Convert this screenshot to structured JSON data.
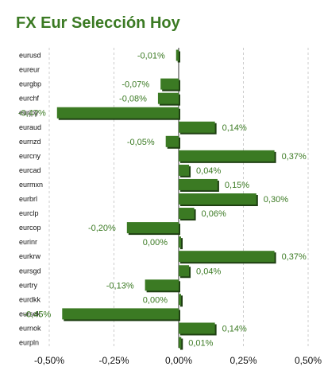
{
  "title": "FX Eur Selección Hoy",
  "colors": {
    "bar": "#3b7a23",
    "bar_shadow": "#1e3f12",
    "label": "#3b7a23",
    "grid": "#cccccc"
  },
  "chart_data": {
    "type": "bar",
    "orientation": "horizontal",
    "title": "FX Eur Selección Hoy",
    "xlabel": "",
    "ylabel": "",
    "xlim": [
      -0.5,
      0.5
    ],
    "xticks": [
      "-0,50%",
      "-0,25%",
      "0,00%",
      "0,25%",
      "0,50%"
    ],
    "grid": "vertical-dashed",
    "categories": [
      "eurusd",
      "eureur",
      "eurgbp",
      "eurchf",
      "eurjpy",
      "euraud",
      "eurnzd",
      "eurcny",
      "eurcad",
      "eurmxn",
      "eurbrl",
      "eurclp",
      "eurcop",
      "eurinr",
      "eurkrw",
      "eursgd",
      "eurtry",
      "eurdkk",
      "eursek",
      "eurnok",
      "eurpln"
    ],
    "values": [
      -0.01,
      null,
      -0.07,
      -0.08,
      -0.47,
      0.14,
      -0.05,
      0.37,
      0.04,
      0.15,
      0.3,
      0.06,
      -0.2,
      0.0,
      0.37,
      0.04,
      -0.13,
      0.0,
      -0.45,
      0.14,
      0.01
    ],
    "labels": [
      "-0,01%",
      "",
      "-0,07%",
      "-0,08%",
      "-0,47%",
      "0,14%",
      "-0,05%",
      "0,37%",
      "0,04%",
      "0,15%",
      "0,30%",
      "0,06%",
      "-0,20%",
      "0,00%",
      "0,37%",
      "0,04%",
      "-0,13%",
      "0,00%",
      "-0,45%",
      "0,14%",
      "0,01%"
    ]
  }
}
